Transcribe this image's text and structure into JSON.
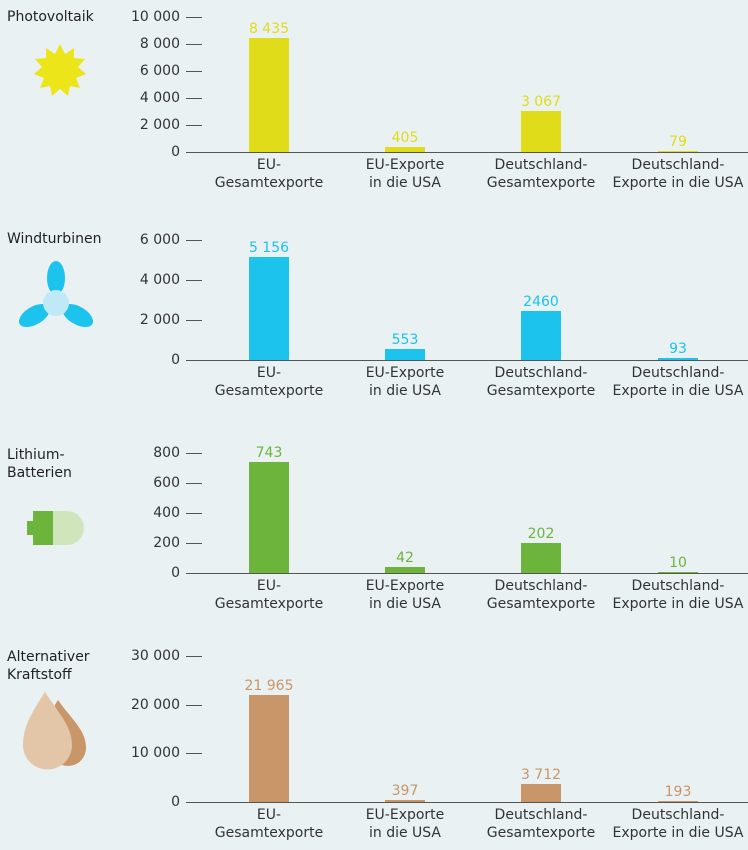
{
  "chart_data": [
    {
      "type": "bar",
      "title": "Photovoltaik",
      "color": "#e0dc1a",
      "categories": [
        "EU-\nGesamtexporte",
        "EU-Exporte\nin die USA",
        "Deutschland-\nGesamtexporte",
        "Deutschland-\nExporte in die USA"
      ],
      "values": [
        8435,
        405,
        3067,
        79
      ],
      "value_labels": [
        "8 435",
        "405",
        "3 067",
        "79"
      ],
      "ylim": [
        0,
        10000
      ],
      "yticks": [
        0,
        {
          "value": 2000,
          "label": "2 000"
        },
        {
          "value": 4000,
          "label": "4 000"
        },
        {
          "value": 6000,
          "label": "6 000"
        },
        {
          "value": 8000,
          "label": "8 000"
        },
        {
          "value": 10000,
          "label": "10 000"
        }
      ]
    },
    {
      "type": "bar",
      "title": "Windturbinen",
      "color": "#1cc3ec",
      "categories": [
        "EU-\nGesamtexporte",
        "EU-Exporte\nin die USA",
        "Deutschland-\nGesamtexporte",
        "Deutschland-\nExporte in die USA"
      ],
      "values": [
        5156,
        553,
        2460,
        93
      ],
      "value_labels": [
        "5 156",
        "553",
        "2460",
        "93"
      ],
      "ylim": [
        0,
        6000
      ],
      "yticks": [
        0,
        {
          "value": 2000,
          "label": "2 000"
        },
        {
          "value": 4000,
          "label": "4 000"
        },
        {
          "value": 6000,
          "label": "6 000"
        }
      ]
    },
    {
      "type": "bar",
      "title": "Lithium-\nBatterien",
      "color": "#6db43c",
      "categories": [
        "EU-\nGesamtexporte",
        "EU-Exporte\nin die USA",
        "Deutschland-\nGesamtexporte",
        "Deutschland-\nExporte in die USA"
      ],
      "values": [
        743,
        42,
        202,
        10
      ],
      "value_labels": [
        "743",
        "42",
        "202",
        "10"
      ],
      "ylim": [
        0,
        800
      ],
      "yticks": [
        0,
        200,
        400,
        600,
        800
      ]
    },
    {
      "type": "bar",
      "title": "Alternativer\nKraftstoff",
      "color": "#c89668",
      "categories": [
        "EU-\nGesamtexporte",
        "EU-Exporte\nin die USA",
        "Deutschland-\nGesamtexporte",
        "Deutschland-\nExporte in die USA"
      ],
      "values": [
        21965,
        397,
        3712,
        193
      ],
      "value_labels": [
        "21 965",
        "397",
        "3 712",
        "193"
      ],
      "ylim": [
        0,
        30000
      ],
      "yticks": [
        0,
        {
          "value": 10000,
          "label": "10 000"
        },
        {
          "value": 20000,
          "label": "20 000"
        },
        {
          "value": 30000,
          "label": "30 000"
        }
      ]
    }
  ]
}
